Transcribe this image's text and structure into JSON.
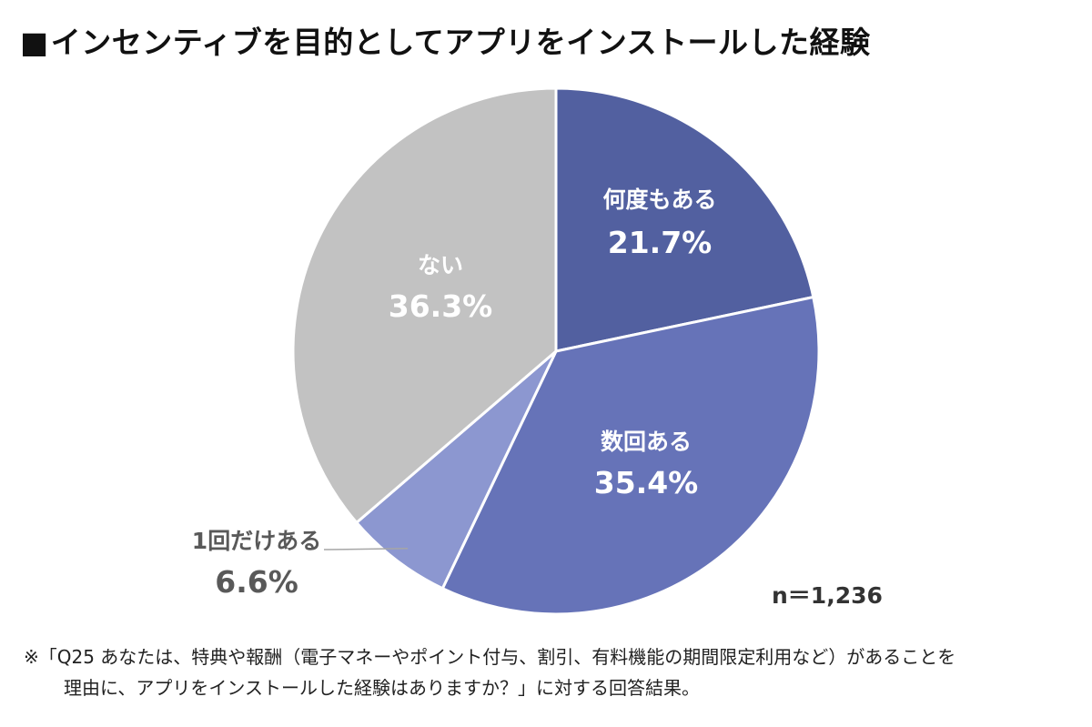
{
  "title": {
    "marker": "■",
    "text": "インセンティブを目的としてアプリをインストールした経験"
  },
  "chart_data": {
    "type": "pie",
    "title": "インセンティブを目的としてアプリをインストールした経験",
    "start": "12 o'clock, clockwise",
    "slices": [
      {
        "label": "何度もある",
        "value": 21.7,
        "display": "21.7%",
        "color": "#5260a0"
      },
      {
        "label": "数回ある",
        "value": 35.4,
        "display": "35.4%",
        "color": "#6673b8"
      },
      {
        "label": "1回だけある",
        "value": 6.6,
        "display": "6.6%",
        "color": "#8c97d0"
      },
      {
        "label": "ない",
        "value": 36.3,
        "display": "36.3%",
        "color": "#c2c2c2"
      }
    ],
    "sample_size": "n＝1,236"
  },
  "footnote": {
    "line1": "※「Q25 あなたは、特典や報酬（電子マネーやポイント付与、割引、有料機能の期間限定利用など）があることを",
    "line2": "理由に、アプリをインストールした経験はありますか？」に対する回答結果。"
  }
}
